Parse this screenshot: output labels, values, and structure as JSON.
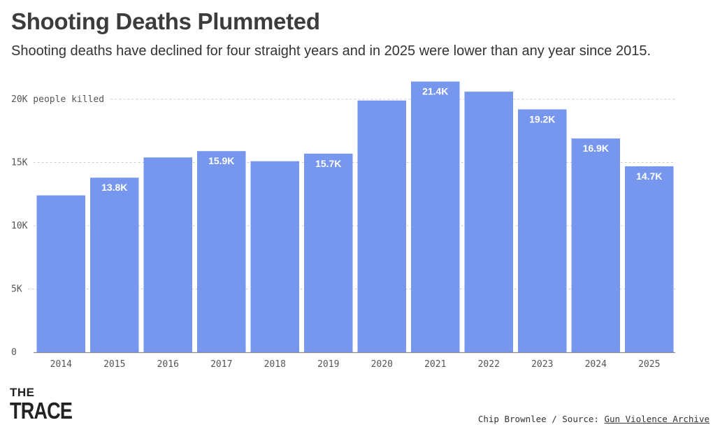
{
  "header": {
    "title": "Shooting Deaths Plummeted",
    "subtitle": "Shooting deaths have declined for four straight years and in 2025 were lower than any year since 2015."
  },
  "footer": {
    "logo_line1": "THE",
    "logo_line2": "TRACE",
    "credit_prefix": "Chip Brownlee / Source: ",
    "source_link": "Gun Violence Archive"
  },
  "colors": {
    "bar": "#7797ee",
    "gridline": "#cccccc",
    "axis": "#888888"
  },
  "chart_data": {
    "type": "bar",
    "title": "Shooting Deaths Plummeted",
    "xlabel": "",
    "ylabel": "people killed",
    "ylim": [
      0,
      22000
    ],
    "grid": true,
    "y_ticks": [
      {
        "value": 0,
        "label": "0"
      },
      {
        "value": 5000,
        "label": "5K"
      },
      {
        "value": 10000,
        "label": "10K"
      },
      {
        "value": 15000,
        "label": "15K"
      },
      {
        "value": 20000,
        "label": "20K people killed"
      }
    ],
    "categories": [
      "2014",
      "2015",
      "2016",
      "2017",
      "2018",
      "2019",
      "2020",
      "2021",
      "2022",
      "2023",
      "2024",
      "2025"
    ],
    "values": [
      12400,
      13800,
      15400,
      15900,
      15100,
      15700,
      19900,
      21400,
      20600,
      19200,
      16900,
      14700
    ],
    "data_labels": [
      "",
      "13.8K",
      "",
      "15.9K",
      "",
      "15.7K",
      "",
      "21.4K",
      "",
      "19.2K",
      "16.9K",
      "14.7K"
    ]
  }
}
